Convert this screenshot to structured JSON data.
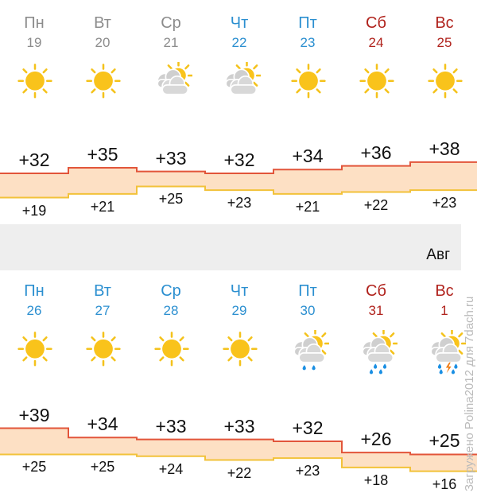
{
  "colors": {
    "past": "#8c8c8c",
    "weekday": "#2b8fd0",
    "weekend": "#b0221c",
    "high_line": "#e2553a",
    "low_line": "#f2c23a",
    "band": "#fde0c4"
  },
  "weeks": [
    {
      "days": [
        {
          "name": "Пн",
          "date": "19",
          "state": "past",
          "icon": "sun",
          "high": "+32",
          "low": "+19",
          "hi": 32,
          "lo": 19
        },
        {
          "name": "Вт",
          "date": "20",
          "state": "past",
          "icon": "sun",
          "high": "+35",
          "low": "+21",
          "hi": 35,
          "lo": 21
        },
        {
          "name": "Ср",
          "date": "21",
          "state": "past",
          "icon": "partly-cloudy",
          "high": "+33",
          "low": "+25",
          "hi": 33,
          "lo": 25
        },
        {
          "name": "Чт",
          "date": "22",
          "state": "weekday",
          "icon": "partly-cloudy",
          "high": "+32",
          "low": "+23",
          "hi": 32,
          "lo": 23
        },
        {
          "name": "Пт",
          "date": "23",
          "state": "weekday",
          "icon": "sun",
          "high": "+34",
          "low": "+21",
          "hi": 34,
          "lo": 21
        },
        {
          "name": "Сб",
          "date": "24",
          "state": "weekend",
          "icon": "sun",
          "high": "+36",
          "low": "+22",
          "hi": 36,
          "lo": 22
        },
        {
          "name": "Вс",
          "date": "25",
          "state": "weekend",
          "icon": "sun",
          "high": "+38",
          "low": "+23",
          "hi": 38,
          "lo": 23
        }
      ]
    },
    {
      "days": [
        {
          "name": "Пн",
          "date": "26",
          "state": "weekday",
          "icon": "sun",
          "high": "+39",
          "low": "+25",
          "hi": 39,
          "lo": 25
        },
        {
          "name": "Вт",
          "date": "27",
          "state": "weekday",
          "icon": "sun",
          "high": "+34",
          "low": "+25",
          "hi": 34,
          "lo": 25
        },
        {
          "name": "Ср",
          "date": "28",
          "state": "weekday",
          "icon": "sun",
          "high": "+33",
          "low": "+24",
          "hi": 33,
          "lo": 24
        },
        {
          "name": "Чт",
          "date": "29",
          "state": "weekday",
          "icon": "sun",
          "high": "+33",
          "low": "+22",
          "hi": 33,
          "lo": 22
        },
        {
          "name": "Пт",
          "date": "30",
          "state": "weekday",
          "icon": "rain",
          "high": "+32",
          "low": "+23",
          "hi": 32,
          "lo": 23
        },
        {
          "name": "Сб",
          "date": "31",
          "state": "weekend",
          "icon": "heavy-rain",
          "high": "+26",
          "low": "+18",
          "hi": 26,
          "lo": 18
        },
        {
          "name": "Вс",
          "date": "1",
          "state": "weekend",
          "icon": "thunderstorm",
          "high": "+25",
          "low": "+16",
          "hi": 25,
          "lo": 16
        }
      ]
    }
  ],
  "month_label": "Авг",
  "watermark": "Загружено Polina2012 для 7dach.ru"
}
